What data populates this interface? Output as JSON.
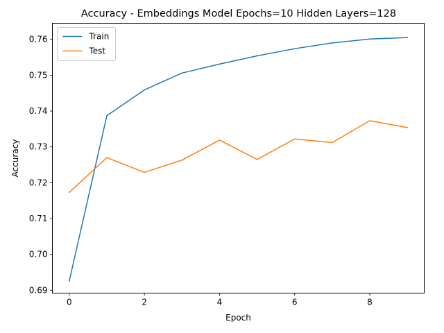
{
  "chart_data": {
    "type": "line",
    "title": "Accuracy - Embeddings Model Epochs=10 Hidden Layers=128",
    "xlabel": "Epoch",
    "ylabel": "Accuracy",
    "x": [
      0,
      1,
      2,
      3,
      4,
      5,
      6,
      7,
      8,
      9
    ],
    "xticks": [
      "0",
      "2",
      "4",
      "6",
      "8"
    ],
    "yticks": [
      "0.69",
      "0.70",
      "0.71",
      "0.72",
      "0.73",
      "0.74",
      "0.75",
      "0.76"
    ],
    "xlim": [
      -0.45,
      9.45
    ],
    "ylim": [
      0.6892,
      0.7645
    ],
    "grid": false,
    "legend_position": "top-left",
    "series": [
      {
        "name": "Train",
        "color": "#1f77b4",
        "values": [
          0.6926,
          0.7387,
          0.7459,
          0.7506,
          0.7531,
          0.7554,
          0.7574,
          0.759,
          0.7601,
          0.7605
        ]
      },
      {
        "name": "Test",
        "color": "#ff7f0e",
        "values": [
          0.7173,
          0.727,
          0.7229,
          0.7263,
          0.7319,
          0.7265,
          0.7322,
          0.7312,
          0.7373,
          0.7354
        ]
      }
    ]
  }
}
